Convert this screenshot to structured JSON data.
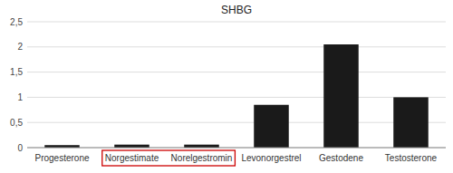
{
  "chart_data": {
    "type": "bar",
    "title": "SHBG",
    "categories": [
      "Progesterone",
      "Norgestimate",
      "Norelgestromin",
      "Levonorgestrel",
      "Gestodene",
      "Testosterone"
    ],
    "values": [
      0.05,
      0.06,
      0.06,
      0.85,
      2.05,
      1.0
    ],
    "color": "#1a1a1a",
    "ylim": [
      0,
      2.5
    ],
    "yticks": [
      0,
      {
        "value": 0.5,
        "label": "0,5"
      },
      1,
      {
        "value": 1.5,
        "label": "1,5"
      },
      2,
      {
        "value": 2.5,
        "label": "2,5"
      }
    ],
    "grid": true
  }
}
